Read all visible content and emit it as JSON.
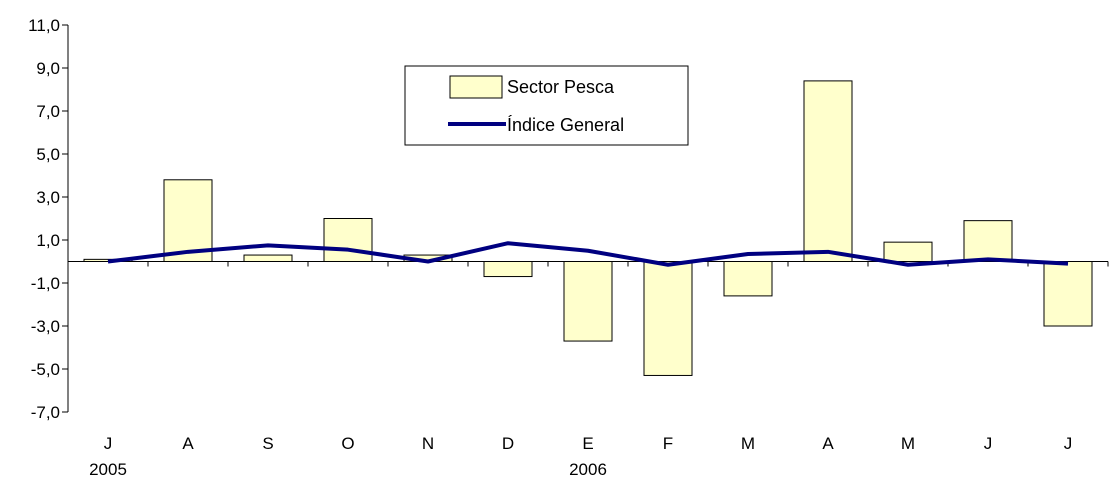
{
  "chart_data": {
    "type": "bar",
    "title": "",
    "xlabel": "",
    "ylabel": "",
    "categories": [
      "J",
      "A",
      "S",
      "O",
      "N",
      "D",
      "E",
      "F",
      "M",
      "A",
      "M",
      "J",
      "J"
    ],
    "year_labels": [
      {
        "category_index": 0,
        "text": "2005"
      },
      {
        "category_index": 6,
        "text": "2006"
      }
    ],
    "ylim": [
      -7.0,
      11.0
    ],
    "yticks": [
      "11,0",
      "9,0",
      "7,0",
      "5,0",
      "3,0",
      "1,0",
      "-1,0",
      "-3,0",
      "-5,0",
      "-7,0"
    ],
    "ytick_values": [
      11,
      9,
      7,
      5,
      3,
      1,
      -1,
      -3,
      -5,
      -7
    ],
    "grid": false,
    "legend_position": "top-center",
    "series": [
      {
        "name": "Sector Pesca",
        "type": "bar",
        "color": "#FFFFCC",
        "values": [
          0.1,
          3.8,
          0.3,
          2.0,
          0.3,
          -0.7,
          -3.7,
          -5.3,
          -1.6,
          8.4,
          0.9,
          1.9,
          -3.0
        ]
      },
      {
        "name": "Índice General",
        "type": "line",
        "color": "#000080",
        "values": [
          0.0,
          0.45,
          0.75,
          0.55,
          0.0,
          0.85,
          0.5,
          -0.15,
          0.35,
          0.45,
          -0.15,
          0.1,
          -0.1
        ]
      }
    ]
  }
}
